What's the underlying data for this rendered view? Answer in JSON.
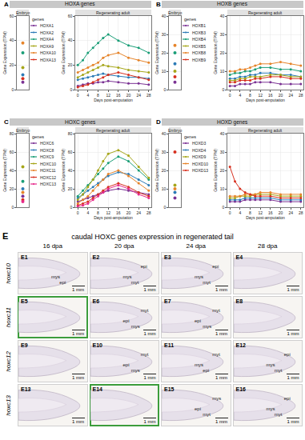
{
  "chart_data": [
    {
      "type": "line",
      "panel": "A",
      "title": "HOXA genes",
      "strips": [
        "Embryo",
        "Regenerating adult"
      ],
      "x_label": "Days post-amputation",
      "y_label": "Gene Expression (TPM)",
      "legend_title": "genes",
      "grid": true,
      "marker": "circle",
      "line_style": "solid",
      "embryo_x": 0,
      "embryo_xlim": [
        -1,
        1
      ],
      "x": [
        0,
        2,
        4,
        6,
        8,
        10,
        12,
        16,
        20,
        24,
        28
      ],
      "xlim": [
        -1,
        29
      ],
      "xticks": [
        0,
        4,
        8,
        12,
        16,
        20,
        24,
        28
      ],
      "ylim": [
        0,
        60
      ],
      "yticks": [
        0,
        20,
        40,
        60
      ],
      "series": [
        {
          "name": "HOXA1",
          "color": "#7b3294",
          "embryo": 6,
          "values": [
            3,
            4,
            5,
            5,
            6,
            6,
            7,
            6,
            5,
            5,
            4
          ]
        },
        {
          "name": "HOXA2",
          "color": "#2c7bb6",
          "embryo": 12,
          "values": [
            8,
            9,
            10,
            11,
            12,
            13,
            12,
            11,
            10,
            10,
            9
          ]
        },
        {
          "name": "HOXA4",
          "color": "#1a9e77",
          "embryo": 30,
          "values": [
            20,
            24,
            30,
            34,
            38,
            42,
            45,
            40,
            36,
            34,
            30
          ]
        },
        {
          "name": "HOXA9",
          "color": "#a6a61a",
          "embryo": 18,
          "values": [
            10,
            12,
            14,
            16,
            18,
            20,
            19,
            18,
            16,
            15,
            14
          ]
        },
        {
          "name": "HOXA10",
          "color": "#e6842a",
          "embryo": 38,
          "values": [
            14,
            16,
            18,
            20,
            22,
            26,
            28,
            30,
            26,
            24,
            22
          ]
        },
        {
          "name": "HOXA13",
          "color": "#d7301f",
          "embryo": 9,
          "values": [
            2,
            3,
            4,
            6,
            8,
            10,
            12,
            14,
            12,
            10,
            8
          ]
        }
      ]
    },
    {
      "type": "line",
      "panel": "B",
      "title": "HOXB genes",
      "strips": [
        "Embryo",
        "Regenerating adult"
      ],
      "x_label": "Days post-amputation",
      "y_label": "Gene Expression (TPM)",
      "legend_title": "genes",
      "grid": true,
      "marker": "circle",
      "line_style": "solid",
      "embryo_x": 0,
      "embryo_xlim": [
        -1,
        1
      ],
      "x": [
        0,
        2,
        4,
        6,
        8,
        10,
        12,
        16,
        20,
        24,
        28
      ],
      "xlim": [
        -1,
        29
      ],
      "xticks": [
        0,
        4,
        8,
        12,
        16,
        20,
        24,
        28
      ],
      "ylim": [
        0,
        40
      ],
      "yticks": [
        0,
        10,
        20,
        30,
        40
      ],
      "series": [
        {
          "name": "HOXB1",
          "color": "#7b3294",
          "embryo": 4,
          "values": [
            2,
            2,
            3,
            3,
            3,
            4,
            4,
            4,
            3,
            3,
            3
          ]
        },
        {
          "name": "HOXB3",
          "color": "#2c7bb6",
          "embryo": 14,
          "values": [
            6,
            6,
            7,
            7,
            8,
            8,
            9,
            9,
            8,
            8,
            7
          ]
        },
        {
          "name": "HOXB4",
          "color": "#1a9e77",
          "embryo": 20,
          "values": [
            8,
            9,
            9,
            10,
            10,
            11,
            12,
            12,
            11,
            11,
            10
          ]
        },
        {
          "name": "HOXB5",
          "color": "#a6a61a",
          "embryo": 10,
          "values": [
            5,
            5,
            6,
            6,
            7,
            7,
            7,
            8,
            8,
            7,
            7
          ]
        },
        {
          "name": "HOXB8",
          "color": "#e6842a",
          "embryo": 24,
          "values": [
            10,
            10,
            11,
            11,
            12,
            13,
            14,
            14,
            15,
            14,
            13
          ]
        },
        {
          "name": "HOXB9",
          "color": "#d7301f",
          "embryo": 7,
          "values": [
            4,
            4,
            5,
            5,
            5,
            6,
            6,
            7,
            7,
            6,
            6
          ]
        }
      ]
    },
    {
      "type": "line",
      "panel": "C",
      "title": "HOXC genes",
      "strips": [
        "Embryo",
        "Regenerating adult"
      ],
      "x_label": "Days post-amputation",
      "y_label": "Gene Expression (TPM)",
      "legend_title": "genes",
      "grid": true,
      "marker": "circle",
      "line_style": "solid",
      "embryo_x": 0,
      "embryo_xlim": [
        -1,
        1
      ],
      "x": [
        0,
        2,
        4,
        6,
        8,
        10,
        12,
        16,
        20,
        24,
        28
      ],
      "xlim": [
        -1,
        29
      ],
      "xticks": [
        0,
        4,
        8,
        12,
        16,
        20,
        24,
        28
      ],
      "ylim": [
        0,
        80
      ],
      "yticks": [
        0,
        20,
        40,
        60,
        80
      ],
      "series": [
        {
          "name": "HOXC6",
          "color": "#7b3294",
          "embryo": 12,
          "values": [
            6,
            8,
            10,
            12,
            14,
            16,
            18,
            20,
            18,
            16,
            14
          ]
        },
        {
          "name": "HOXC8",
          "color": "#2c7bb6",
          "embryo": 20,
          "values": [
            10,
            14,
            18,
            22,
            26,
            30,
            34,
            38,
            36,
            30,
            24
          ]
        },
        {
          "name": "HOXC9",
          "color": "#1a9e77",
          "embryo": 28,
          "values": [
            12,
            18,
            24,
            30,
            36,
            42,
            48,
            55,
            50,
            40,
            30
          ]
        },
        {
          "name": "HOXC10",
          "color": "#a6a61a",
          "embryo": 44,
          "values": [
            8,
            14,
            22,
            30,
            40,
            50,
            58,
            62,
            56,
            44,
            32
          ]
        },
        {
          "name": "HOXC11",
          "color": "#e6842a",
          "embryo": 16,
          "values": [
            4,
            8,
            12,
            18,
            24,
            30,
            36,
            40,
            34,
            26,
            18
          ]
        },
        {
          "name": "HOXC12",
          "color": "#d7301f",
          "embryo": 8,
          "values": [
            2,
            4,
            6,
            10,
            14,
            18,
            22,
            26,
            22,
            16,
            12
          ]
        },
        {
          "name": "HOXC13",
          "color": "#e7298a",
          "embryo": 6,
          "values": [
            1,
            2,
            4,
            8,
            12,
            16,
            20,
            24,
            20,
            14,
            10
          ]
        }
      ]
    },
    {
      "type": "line",
      "panel": "D",
      "title": "HOXD genes",
      "strips": [
        "Embryo",
        "Regenerating adult"
      ],
      "x_label": "Days post-amputation",
      "y_label": "Gene Expression (TPM)",
      "legend_title": "genes",
      "grid": true,
      "marker": "circle",
      "line_style": "solid",
      "embryo_x": 0,
      "embryo_xlim": [
        -1,
        1
      ],
      "x": [
        0,
        2,
        4,
        6,
        8,
        10,
        12,
        16,
        20,
        24,
        28
      ],
      "xlim": [
        -1,
        29
      ],
      "xticks": [
        0,
        4,
        8,
        12,
        16,
        20,
        24,
        28
      ],
      "ylim": [
        0,
        40
      ],
      "yticks": [
        0,
        10,
        20,
        30,
        40
      ],
      "series": [
        {
          "name": "HOXD3",
          "color": "#7b3294",
          "embryo": 5,
          "values": [
            3,
            3,
            3,
            4,
            4,
            4,
            4,
            4,
            3,
            3,
            3
          ]
        },
        {
          "name": "HOXD4",
          "color": "#2c7bb6",
          "embryo": 8,
          "values": [
            4,
            4,
            4,
            5,
            5,
            5,
            5,
            5,
            4,
            4,
            4
          ]
        },
        {
          "name": "HOXD9",
          "color": "#a6a61a",
          "embryo": 12,
          "values": [
            5,
            5,
            6,
            6,
            6,
            7,
            7,
            7,
            6,
            6,
            6
          ]
        },
        {
          "name": "HOXD10",
          "color": "#e6842a",
          "embryo": 10,
          "values": [
            6,
            6,
            6,
            7,
            7,
            7,
            8,
            8,
            7,
            7,
            7
          ]
        },
        {
          "name": "HOXD13",
          "color": "#d7301f",
          "embryo": 30,
          "values": [
            22,
            14,
            10,
            8,
            7,
            6,
            6,
            6,
            5,
            5,
            5
          ]
        }
      ]
    }
  ],
  "panel_e": {
    "panel": "E",
    "title": "caudal HOXC genes expression in regenerated tail",
    "columns": [
      "16 dpa",
      "20 dpa",
      "24 dpa",
      "28 dpa"
    ],
    "rows": [
      {
        "gene": "hoxc10",
        "cells": [
          {
            "id": "E1",
            "labels": [
              "mys",
              "epi"
            ],
            "scale": "1 mm"
          },
          {
            "id": "E2",
            "labels": [
              "mys",
              "myt",
              "epi"
            ],
            "scale": "1 mm"
          },
          {
            "id": "E3",
            "labels": [
              "mys",
              "myt",
              "epi"
            ],
            "scale": "1 mm"
          },
          {
            "id": "E4",
            "labels": [],
            "scale": "1 mm"
          }
        ]
      },
      {
        "gene": "hoxc11",
        "cells": [
          {
            "id": "E5",
            "labels": [],
            "scale": "1 mm",
            "highlighted": true
          },
          {
            "id": "E6",
            "labels": [
              "epi",
              "mys",
              "myt"
            ],
            "scale": "1 mm"
          },
          {
            "id": "E7",
            "labels": [
              "epi",
              "mys",
              "myt"
            ],
            "scale": "1 mm"
          },
          {
            "id": "E8",
            "labels": [],
            "scale": "1 mm"
          }
        ]
      },
      {
        "gene": "hoxc12",
        "cells": [
          {
            "id": "E9",
            "labels": [],
            "scale": "1 mm"
          },
          {
            "id": "E10",
            "labels": [
              "epi",
              "mys",
              "myt"
            ],
            "scale": "1 mm"
          },
          {
            "id": "E11",
            "labels": [
              "mys",
              "epi",
              "myt"
            ],
            "scale": "1 mm"
          },
          {
            "id": "E12",
            "labels": [
              "mys",
              "myt",
              "epi"
            ],
            "scale": "1 mm"
          }
        ]
      },
      {
        "gene": "hoxc13",
        "cells": [
          {
            "id": "E13",
            "labels": [],
            "scale": "1 mm"
          },
          {
            "id": "E14",
            "labels": [],
            "scale": "1 mm",
            "highlighted": true
          },
          {
            "id": "E15",
            "labels": [
              "epi",
              "myt",
              "mys"
            ],
            "scale": "1 mm"
          },
          {
            "id": "E16",
            "labels": [
              "mys",
              "myt",
              "epi"
            ],
            "scale": "1 mm"
          }
        ]
      }
    ]
  }
}
